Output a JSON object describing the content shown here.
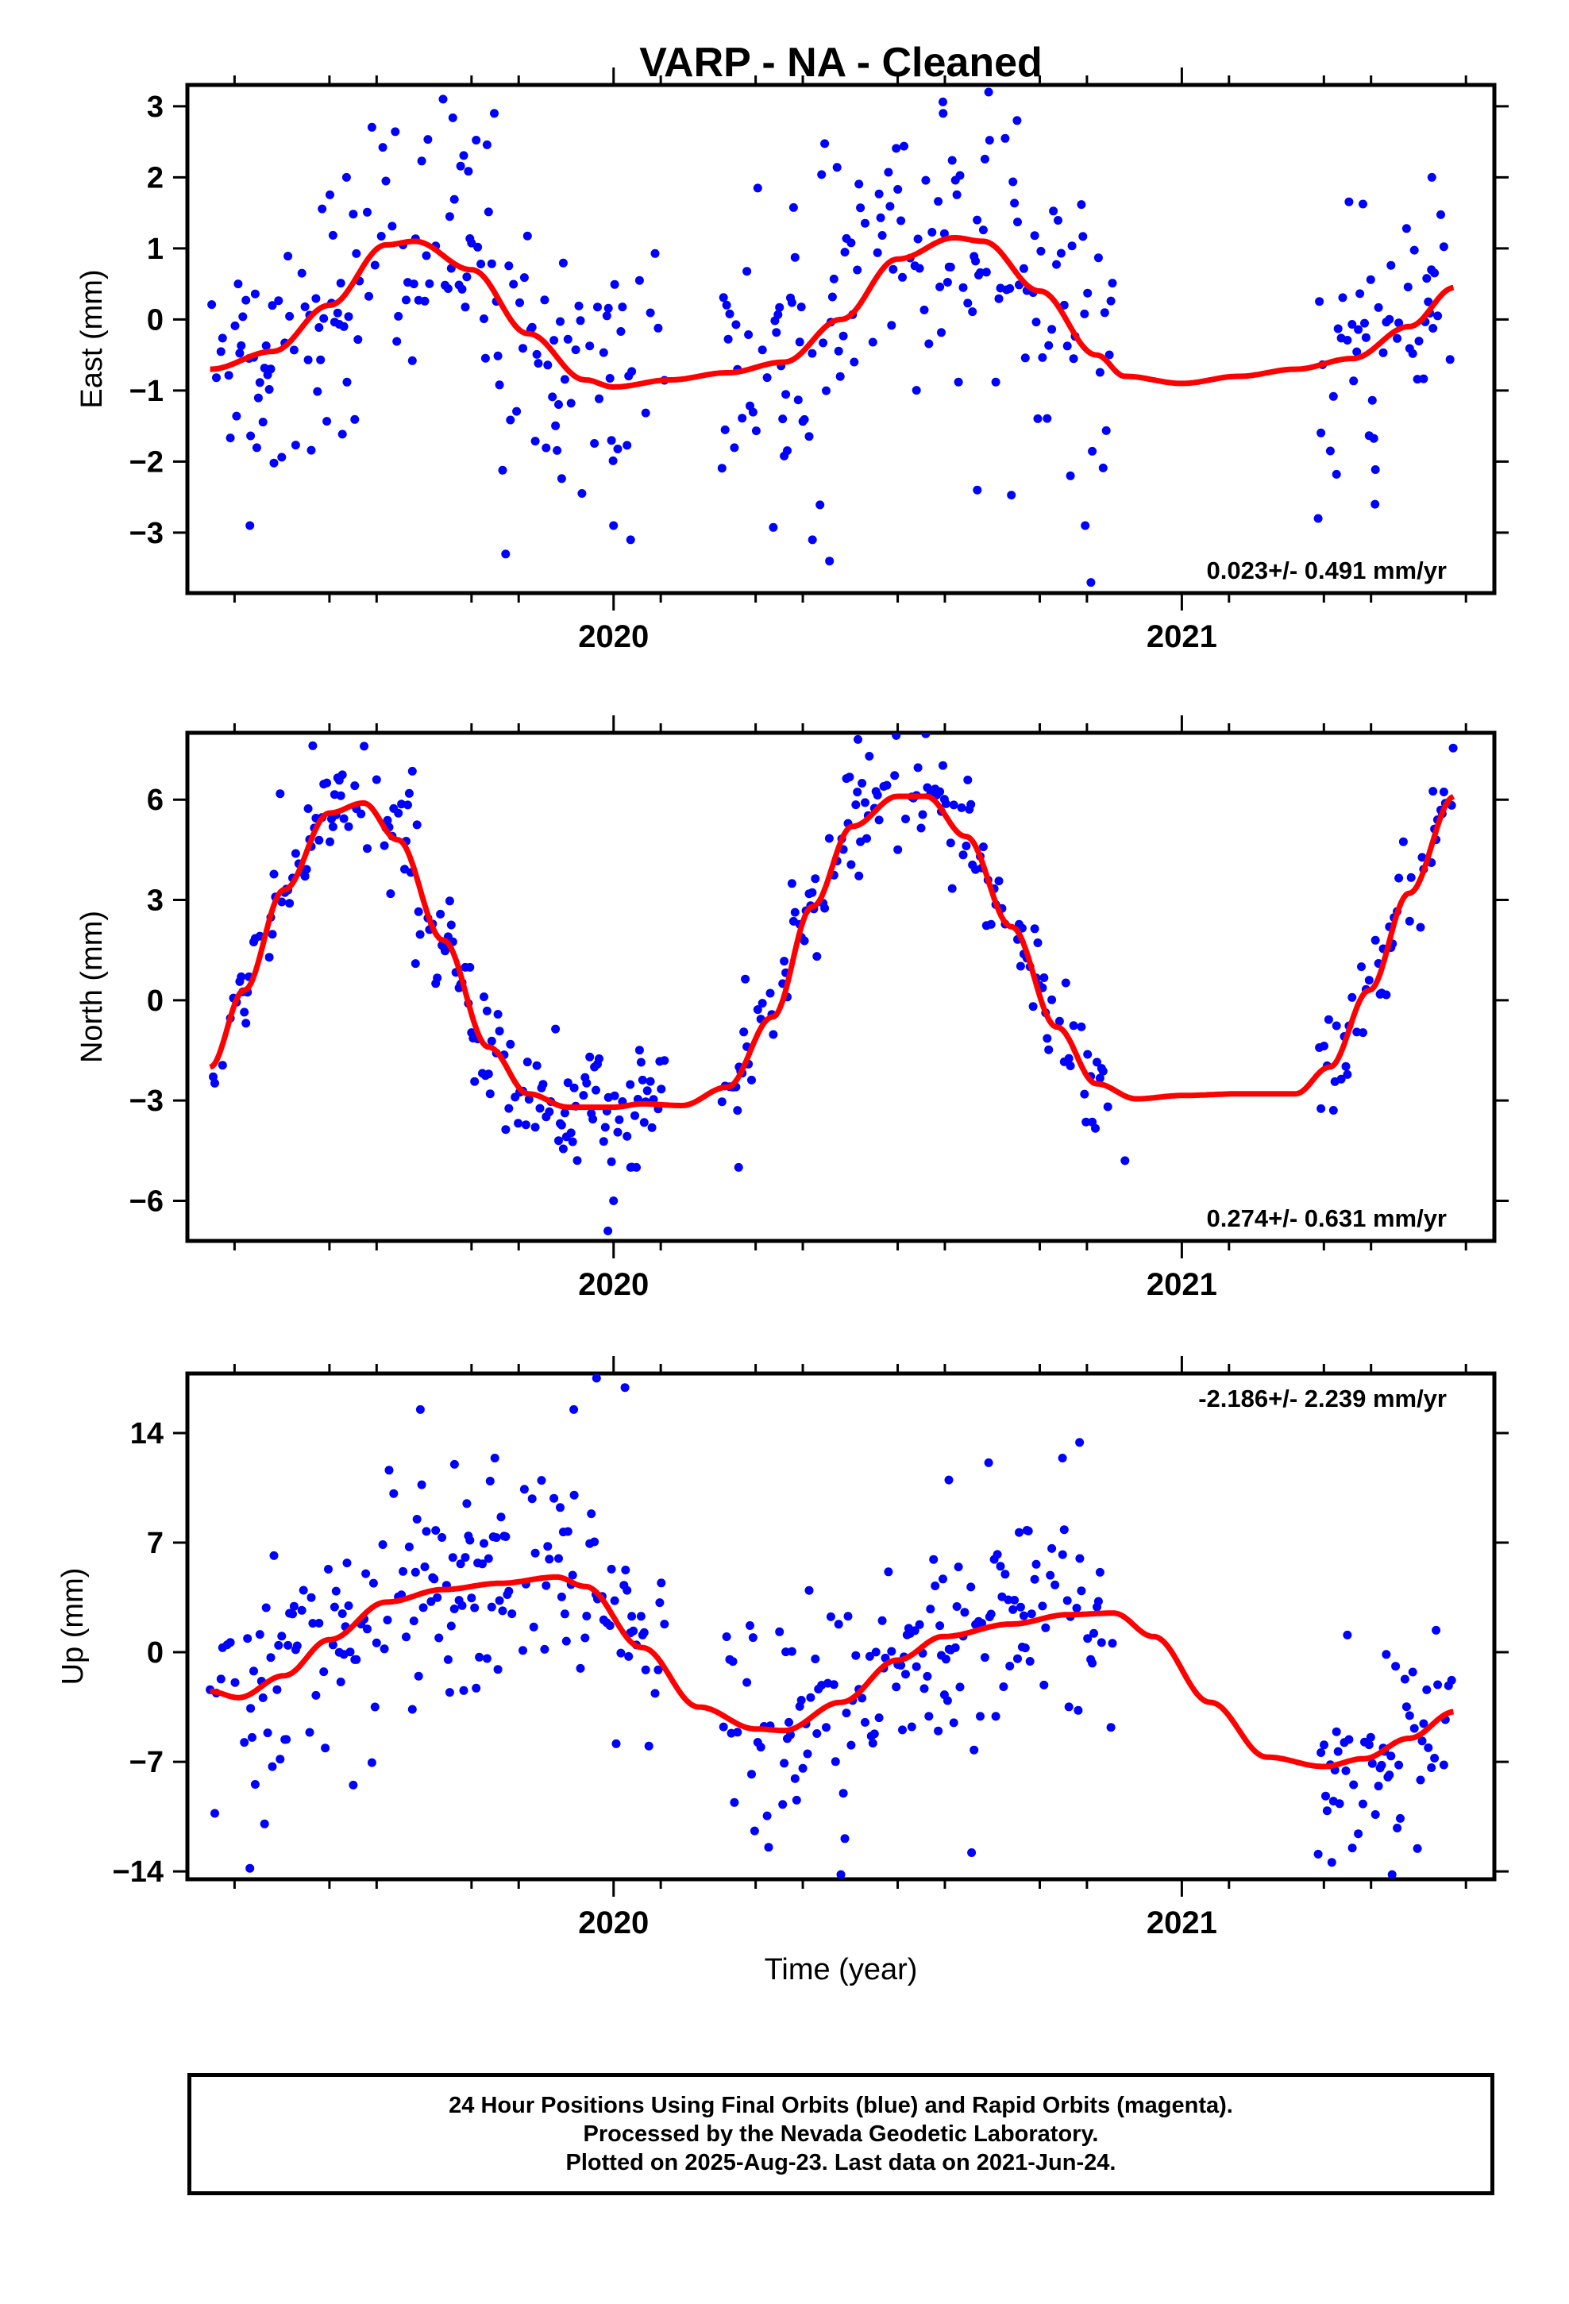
{
  "title": "VARP  - NA - Cleaned",
  "xlabel": "Time (year)",
  "colors": {
    "final_orbits": "#0000ff",
    "model": "#ff0000",
    "frame": "#000000"
  },
  "chart_data": [
    {
      "type": "scatter",
      "component": "East",
      "ylabel": "East (mm)",
      "xlim": [
        2019.25,
        2021.55
      ],
      "ylim": [
        -3.85,
        3.3
      ],
      "yticks": [
        3,
        2,
        1,
        0,
        -1,
        -2,
        -3
      ],
      "ytick_labels": [
        "3",
        "2",
        "1",
        "0",
        "−1",
        "−2",
        "−3"
      ],
      "xticks_major": [
        2020,
        2021
      ],
      "xtick_labels": [
        "2020",
        "2021"
      ],
      "xticks_minor": [
        2019.333,
        2019.5,
        2019.583,
        2019.75,
        2019.833,
        2020.083,
        2020.25,
        2020.333,
        2020.5,
        2020.583,
        2020.75,
        2020.833,
        2021.083,
        2021.25,
        2021.333,
        2021.5
      ],
      "rate_label": "0.023+/- 0.491 mm/yr",
      "rate_position": "bottom-right",
      "data_start": 2019.29,
      "data_end": 2021.48,
      "gaps": [
        [
          2020.09,
          2020.19
        ],
        [
          2020.88,
          2021.24
        ]
      ],
      "model": {
        "x": [
          2019.29,
          2019.4,
          2019.5,
          2019.6,
          2019.65,
          2019.75,
          2019.85,
          2019.95,
          2020.0,
          2020.1,
          2020.2,
          2020.3,
          2020.4,
          2020.5,
          2020.6,
          2020.65,
          2020.75,
          2020.85,
          2020.9,
          2021.0,
          2021.1,
          2021.2,
          2021.3,
          2021.4,
          2021.48
        ],
        "y": [
          -0.7,
          -0.45,
          0.2,
          1.05,
          1.1,
          0.7,
          -0.2,
          -0.85,
          -0.95,
          -0.85,
          -0.75,
          -0.6,
          0.0,
          0.85,
          1.15,
          1.1,
          0.4,
          -0.5,
          -0.8,
          -0.9,
          -0.8,
          -0.7,
          -0.55,
          -0.1,
          0.45
        ]
      },
      "scatter_sd": 0.95,
      "outliers": [
        [
          2019.36,
          -2.9
        ],
        [
          2019.53,
          2.0
        ],
        [
          2019.7,
          3.1
        ],
        [
          2019.79,
          2.9
        ],
        [
          2019.81,
          -3.3
        ],
        [
          2020.0,
          -2.9
        ],
        [
          2020.03,
          -3.1
        ],
        [
          2020.38,
          -3.4
        ],
        [
          2020.35,
          -3.1
        ],
        [
          2020.58,
          2.9
        ],
        [
          2020.66,
          3.2
        ],
        [
          2020.71,
          2.8
        ],
        [
          2020.64,
          -2.4
        ],
        [
          2020.83,
          -2.9
        ],
        [
          2020.84,
          -3.7
        ],
        [
          2021.24,
          -2.8
        ],
        [
          2021.34,
          -2.6
        ],
        [
          2021.44,
          2.0
        ]
      ]
    },
    {
      "type": "scatter",
      "component": "North",
      "ylabel": "North (mm)",
      "xlim": [
        2019.25,
        2021.55
      ],
      "ylim": [
        -7.2,
        8.0
      ],
      "yticks": [
        6,
        3,
        0,
        -3,
        -6
      ],
      "ytick_labels": [
        "6",
        "3",
        "0",
        "−3",
        "−6"
      ],
      "xticks_major": [
        2020,
        2021
      ],
      "xtick_labels": [
        "2020",
        "2021"
      ],
      "xticks_minor": [
        2019.333,
        2019.5,
        2019.583,
        2019.75,
        2019.833,
        2020.083,
        2020.25,
        2020.333,
        2020.5,
        2020.583,
        2020.75,
        2020.833,
        2021.083,
        2021.25,
        2021.333,
        2021.5
      ],
      "rate_label": "0.274+/- 0.631 mm/yr",
      "rate_position": "bottom-right",
      "data_start": 2019.29,
      "data_end": 2021.48,
      "gaps": [
        [
          2020.09,
          2020.19
        ],
        [
          2020.88,
          2021.24
        ]
      ],
      "model": {
        "x": [
          2019.29,
          2019.35,
          2019.42,
          2019.5,
          2019.56,
          2019.62,
          2019.7,
          2019.78,
          2019.85,
          2019.92,
          2020.0,
          2020.05,
          2020.12,
          2020.2,
          2020.28,
          2020.35,
          2020.42,
          2020.5,
          2020.55,
          2020.62,
          2020.7,
          2020.78,
          2020.85,
          2020.92,
          2021.0,
          2021.1,
          2021.2,
          2021.26,
          2021.33,
          2021.4,
          2021.48
        ],
        "y": [
          -2.0,
          0.3,
          3.3,
          5.6,
          5.9,
          4.8,
          1.8,
          -1.4,
          -2.8,
          -3.2,
          -3.2,
          -3.1,
          -3.15,
          -2.6,
          -0.5,
          2.8,
          5.2,
          6.1,
          6.1,
          4.9,
          2.2,
          -0.8,
          -2.5,
          -2.95,
          -2.85,
          -2.8,
          -2.8,
          -2.0,
          0.3,
          3.2,
          6.1
        ]
      },
      "scatter_sd": 0.9,
      "outliers": [
        [
          2019.99,
          -6.9
        ],
        [
          2020.0,
          -6.0
        ],
        [
          2020.03,
          -5.0
        ],
        [
          2020.22,
          -5.0
        ],
        [
          2020.43,
          7.8
        ],
        [
          2020.45,
          7.3
        ],
        [
          2020.9,
          -4.8
        ],
        [
          2021.45,
          5.4
        ]
      ]
    },
    {
      "type": "scatter",
      "component": "Up",
      "ylabel": "Up (mm)",
      "xlim": [
        2019.25,
        2021.55
      ],
      "ylim": [
        -14.5,
        17.8
      ],
      "yticks": [
        14,
        7,
        0,
        -7,
        -14
      ],
      "ytick_labels": [
        "14",
        "7",
        "0",
        "−7",
        "−14"
      ],
      "xticks_major": [
        2020,
        2021
      ],
      "xtick_labels": [
        "2020",
        "2021"
      ],
      "xticks_minor": [
        2019.333,
        2019.5,
        2019.583,
        2019.75,
        2019.833,
        2020.083,
        2020.25,
        2020.333,
        2020.5,
        2020.583,
        2020.75,
        2020.833,
        2021.083,
        2021.25,
        2021.333,
        2021.5
      ],
      "rate_label": "-2.186+/- 2.239 mm/yr",
      "rate_position": "top-right",
      "data_start": 2019.29,
      "data_end": 2021.48,
      "gaps": [
        [
          2020.09,
          2020.19
        ],
        [
          2020.88,
          2021.24
        ]
      ],
      "model": {
        "x": [
          2019.29,
          2019.34,
          2019.42,
          2019.5,
          2019.6,
          2019.7,
          2019.8,
          2019.9,
          2019.95,
          2020.05,
          2020.15,
          2020.25,
          2020.3,
          2020.4,
          2020.5,
          2020.58,
          2020.7,
          2020.8,
          2020.88,
          2020.95,
          2021.05,
          2021.15,
          2021.25,
          2021.32,
          2021.4,
          2021.48
        ],
        "y": [
          -2.5,
          -2.9,
          -1.5,
          0.8,
          3.2,
          4.0,
          4.4,
          4.8,
          4.2,
          0.3,
          -3.5,
          -4.9,
          -5.0,
          -3.2,
          -0.5,
          1.0,
          1.8,
          2.4,
          2.5,
          1.0,
          -3.2,
          -6.7,
          -7.3,
          -6.8,
          -5.5,
          -3.8
        ]
      },
      "scatter_sd": 3.6,
      "outliers": [
        [
          2019.36,
          -13.8
        ],
        [
          2019.66,
          15.5
        ],
        [
          2019.72,
          12.0
        ],
        [
          2019.93,
          15.5
        ],
        [
          2019.97,
          17.5
        ],
        [
          2020.02,
          16.9
        ],
        [
          2020.24,
          1.7
        ],
        [
          2020.4,
          -14.2
        ],
        [
          2020.59,
          11.0
        ],
        [
          2020.63,
          -12.8
        ],
        [
          2020.66,
          12.1
        ],
        [
          2020.79,
          12.4
        ],
        [
          2020.82,
          13.4
        ],
        [
          2021.37,
          -14.2
        ],
        [
          2021.3,
          -12.5
        ],
        [
          2021.24,
          -12.9
        ]
      ]
    }
  ],
  "footer": {
    "line1": "24 Hour Positions Using Final Orbits (blue) and Rapid Orbits (magenta).",
    "line2": "Processed by the Nevada Geodetic Laboratory.",
    "line3": "Plotted on 2025-Aug-23. Last data on 2021-Jun-24."
  }
}
